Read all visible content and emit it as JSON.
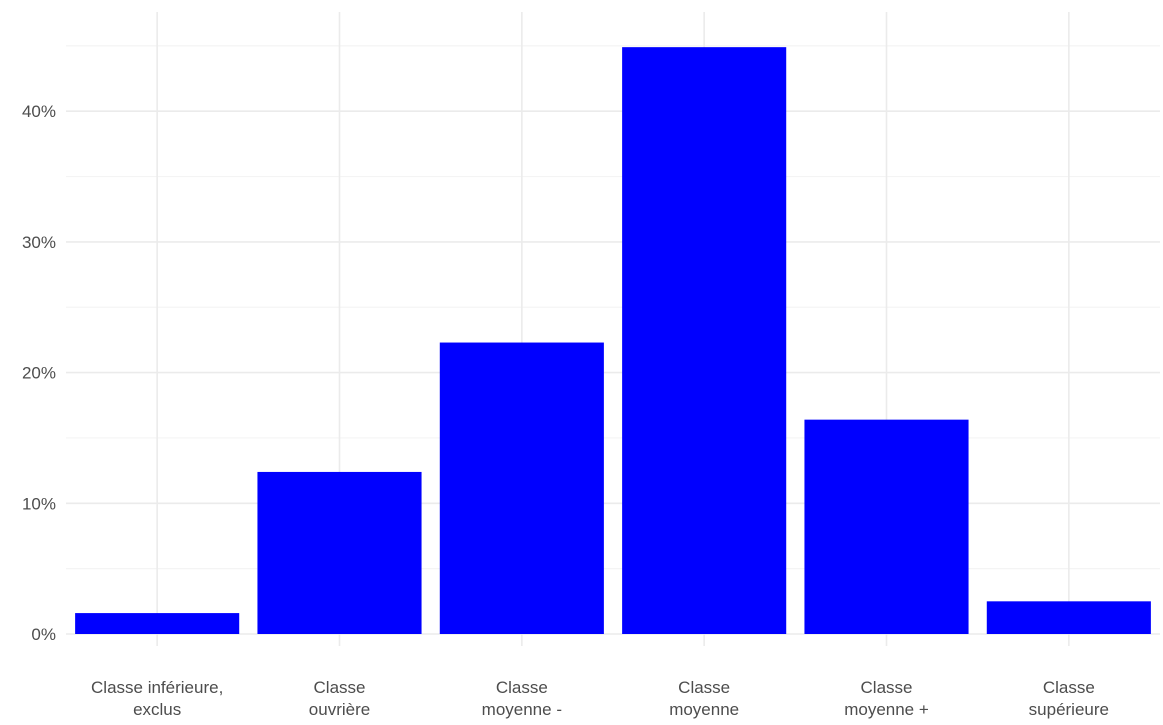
{
  "chart_data": {
    "type": "bar",
    "title": "",
    "xlabel": "",
    "ylabel": "",
    "categories": [
      [
        "Classe inférieure,",
        "exclus"
      ],
      [
        "Classe",
        "ouvrière"
      ],
      [
        "Classe",
        "moyenne -"
      ],
      [
        "Classe",
        "moyenne"
      ],
      [
        "Classe",
        "moyenne +"
      ],
      [
        "Classe",
        "supérieure"
      ]
    ],
    "values": [
      1.6,
      12.4,
      22.3,
      44.9,
      16.4,
      2.5
    ],
    "ylim": [
      0,
      45
    ],
    "yticks": [
      0,
      10,
      20,
      30,
      40
    ],
    "ytick_labels": [
      "0%",
      "10%",
      "20%",
      "30%",
      "40%"
    ],
    "grid": true,
    "colors": {
      "bar": "#0000ff",
      "grid_major": "#ebebeb",
      "grid_minor": "#f4f4f4",
      "text": "#4d4d4d"
    }
  }
}
